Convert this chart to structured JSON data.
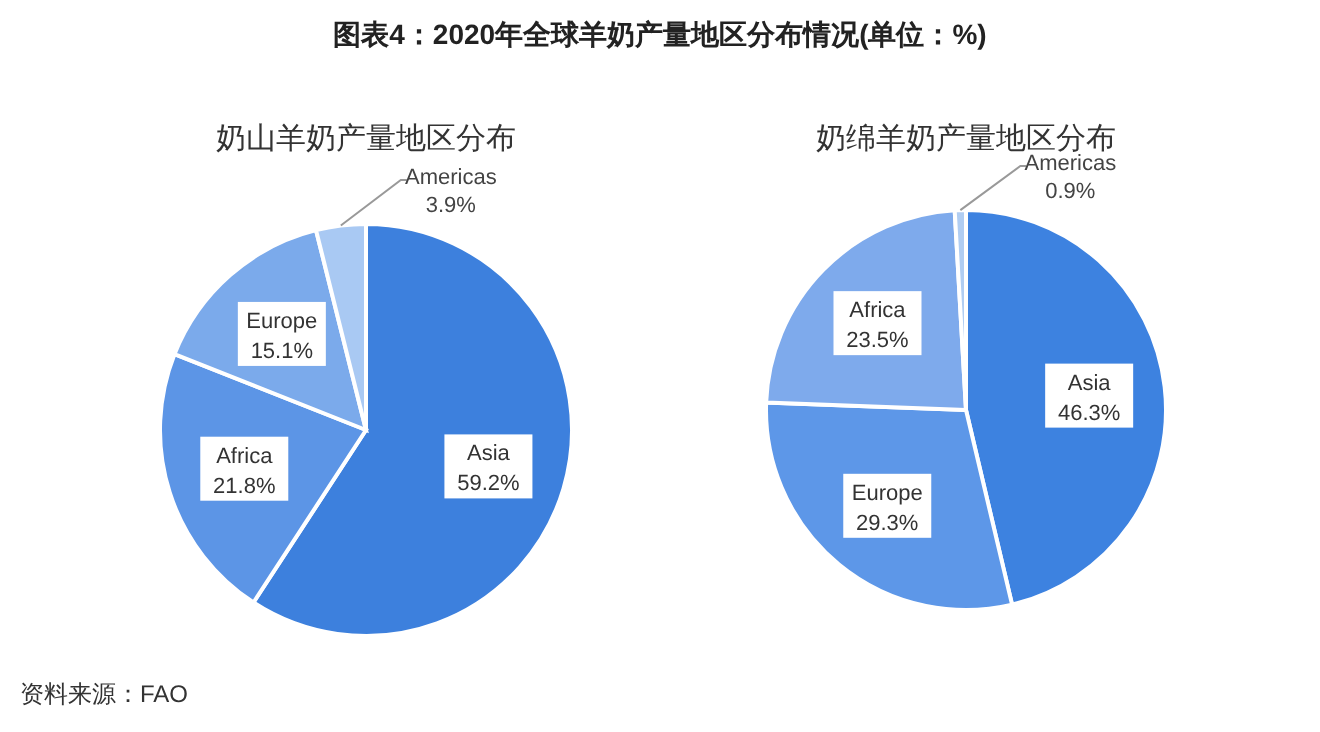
{
  "chart_data": [
    {
      "type": "pie",
      "title": "奶山羊奶产量地区分布",
      "annotations": [
        "图表4：2020年全球羊奶产量地区分布情况(单位：%)",
        "资料来源：FAO"
      ],
      "categories": [
        "Asia",
        "Africa",
        "Europe",
        "Americas"
      ],
      "values": [
        59.2,
        21.8,
        15.1,
        3.9
      ],
      "value_labels": [
        "59.2%",
        "21.8%",
        "15.1%",
        "3.9%"
      ],
      "colors": [
        "#3d80dd",
        "#5c95e6",
        "#7baaeb",
        "#a9c9f3"
      ],
      "legend": false
    },
    {
      "type": "pie",
      "title": "奶绵羊奶产量地区分布",
      "categories": [
        "Asia",
        "Europe",
        "Africa",
        "Americas"
      ],
      "values": [
        46.3,
        29.3,
        23.5,
        0.9
      ],
      "value_labels": [
        "46.3%",
        "29.3%",
        "23.5%",
        "0.9%"
      ],
      "colors": [
        "#3d82e0",
        "#5d97e8",
        "#7eaaec",
        "#b0cdf2"
      ],
      "legend": false
    }
  ]
}
